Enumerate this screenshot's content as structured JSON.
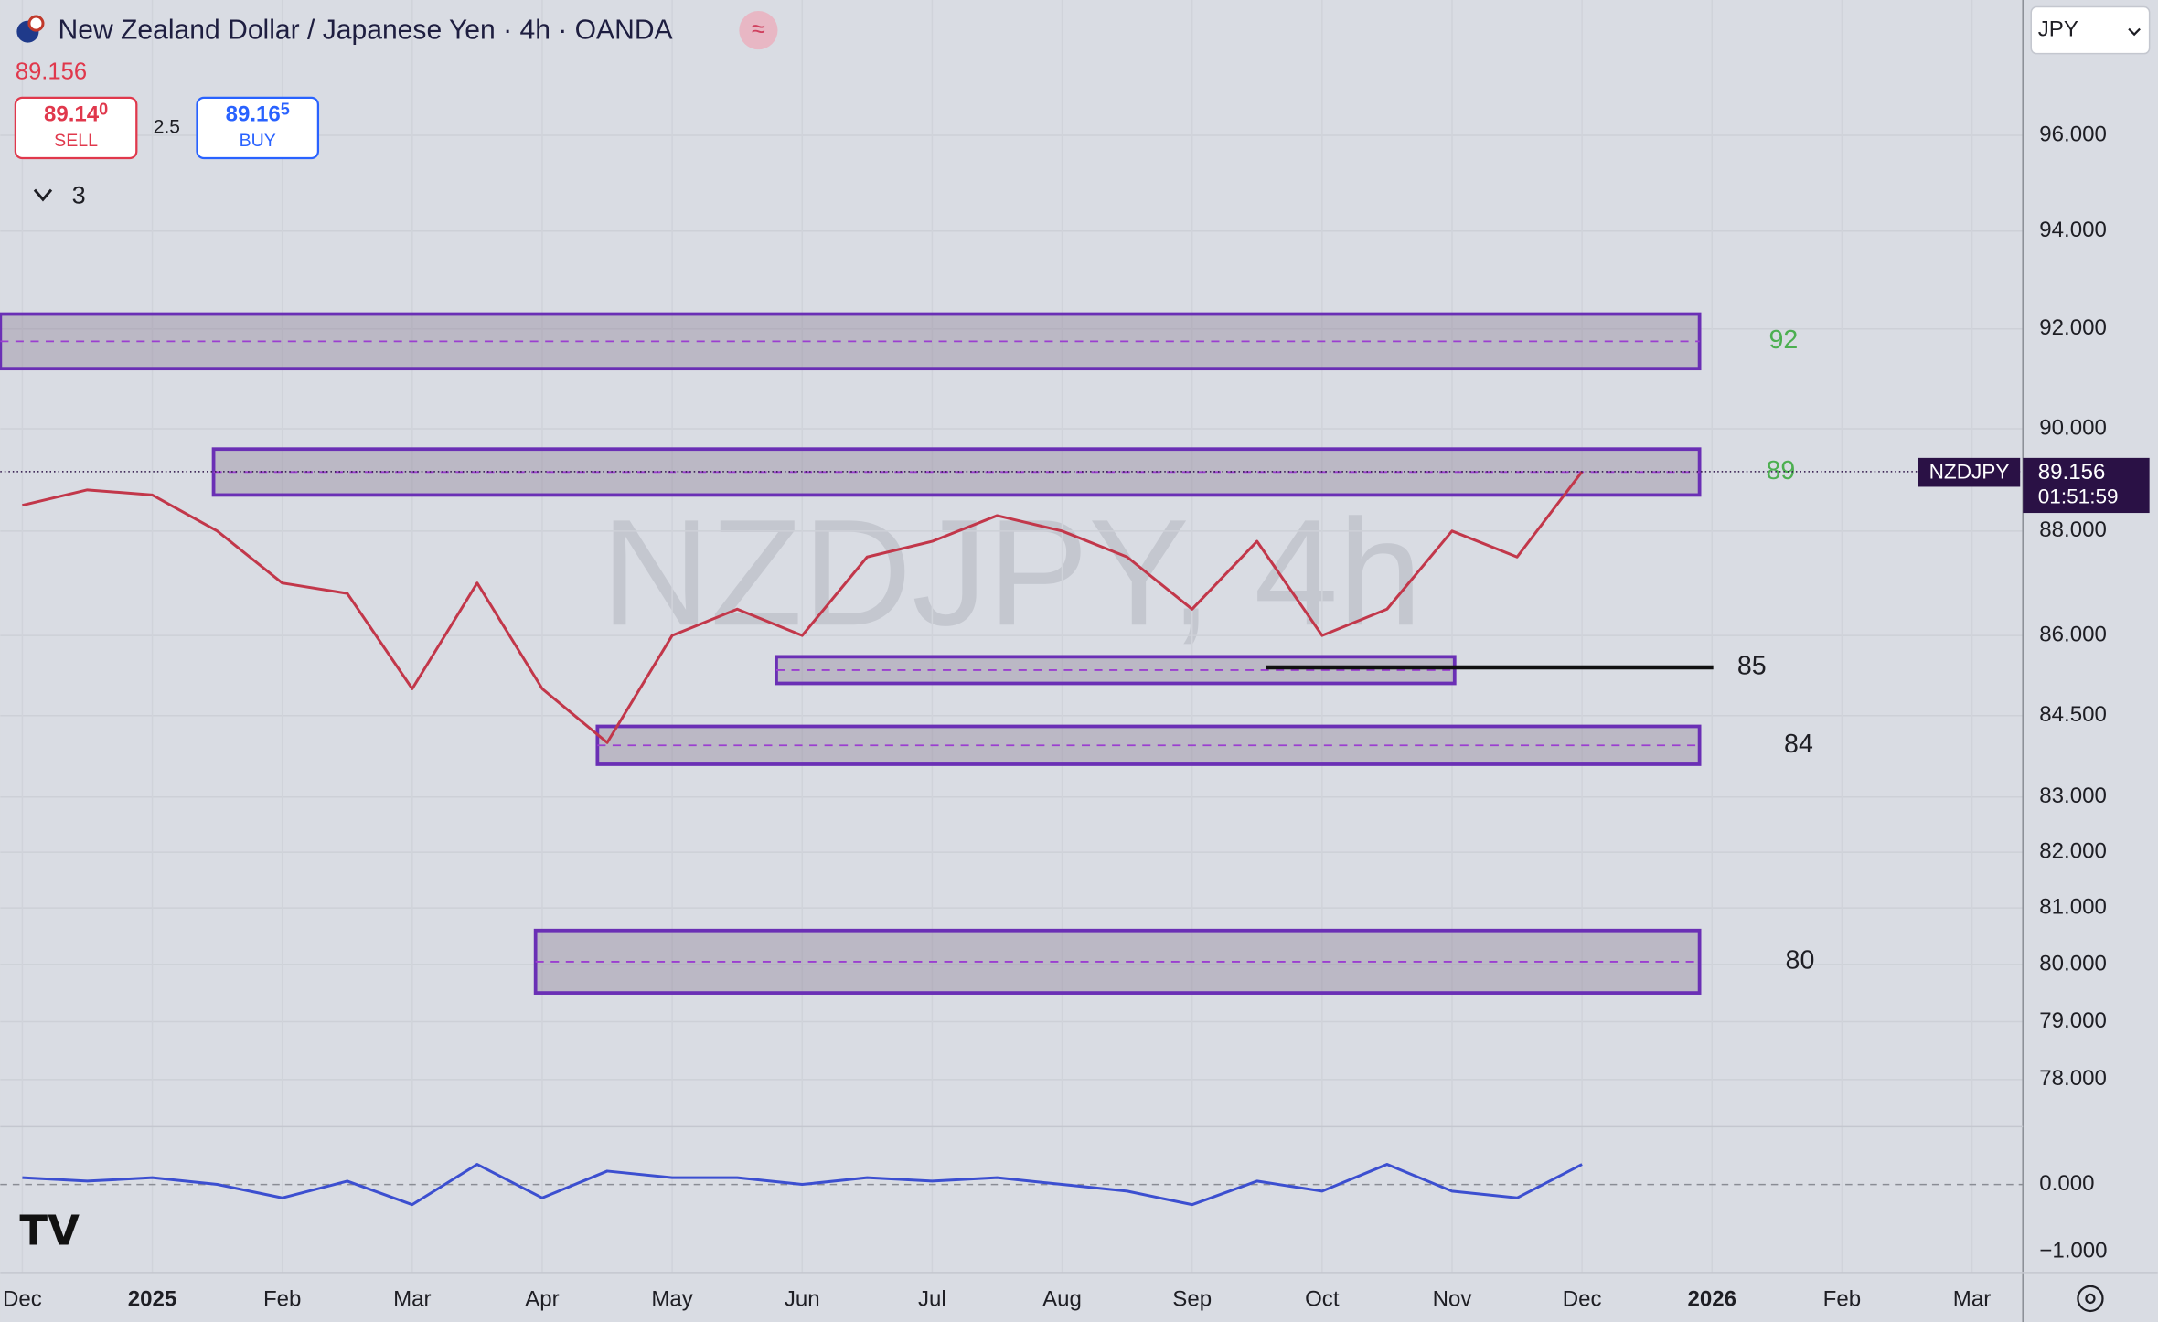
{
  "header": {
    "title": "New Zealand Dollar / Japanese Yen · 4h · OANDA",
    "sell": {
      "price": "89.14",
      "pip": "0",
      "label": "SELL"
    },
    "spread": "2.5",
    "buy": {
      "price": "89.16",
      "pip": "5",
      "label": "BUY"
    },
    "indicators_count": "3",
    "currency": "JPY",
    "watermark": "NZDJPY, 4h",
    "symbol": "NZDJPY",
    "countdown": "01:51:59"
  },
  "chart_data": [
    {
      "type": "line",
      "log_scale": true,
      "grid": true,
      "color": "#c2374a",
      "categories": [
        "Dec",
        null,
        "2025",
        null,
        "Feb",
        null,
        "Mar",
        null,
        "Apr",
        null,
        "May",
        null,
        "Jun",
        null,
        "Jul",
        null,
        "Aug",
        null,
        "Sep",
        null,
        "Oct",
        null,
        "Nov",
        null,
        "Dec",
        null,
        "2026",
        null,
        "Feb",
        null,
        "Mar"
      ],
      "values": [
        88.5,
        88.8,
        88.7,
        88.0,
        87.0,
        86.8,
        85.0,
        87.0,
        85.0,
        84.0,
        86.0,
        86.5,
        86.0,
        87.5,
        87.8,
        88.3,
        88.0,
        87.5,
        86.5,
        87.8,
        86.0,
        86.5,
        88.0,
        87.5,
        89.156,
        null,
        null,
        null,
        null,
        null,
        null
      ],
      "last_price": 89.156,
      "ylim": [
        77.22,
        98.9
      ],
      "yticks": [
        {
          "value": 96,
          "label": "96.000"
        },
        {
          "value": 94,
          "label": "94.000"
        },
        {
          "value": 92,
          "label": "92.000"
        },
        {
          "value": 90,
          "label": "90.000"
        },
        {
          "value": 88,
          "label": "88.000"
        },
        {
          "value": 86,
          "label": "86.000"
        },
        {
          "value": 84.5,
          "label": "84.500"
        },
        {
          "value": 83,
          "label": "83.000"
        },
        {
          "value": 82,
          "label": "82.000"
        },
        {
          "value": 81,
          "label": "81.000"
        },
        {
          "value": 80,
          "label": "80.000"
        },
        {
          "value": 79,
          "label": "79.000"
        },
        {
          "value": 78,
          "label": "78.000"
        }
      ],
      "zones": [
        {
          "label": "92",
          "top": 92.3,
          "bottom": 91.2,
          "label_color": "#4caf50"
        },
        {
          "label": "89",
          "top": 89.6,
          "bottom": 88.7,
          "label_color": "#4caf50"
        },
        {
          "top": 85.6,
          "bottom": 85.1
        },
        {
          "label": "84",
          "top": 84.3,
          "bottom": 83.6,
          "label_color": "#1e1e24"
        },
        {
          "label": "80",
          "top": 80.6,
          "bottom": 79.5,
          "label_color": "#1e1e24"
        }
      ],
      "levels": [
        {
          "label": "85",
          "value": 85.4,
          "color": "#111111"
        }
      ]
    },
    {
      "type": "line",
      "color": "#3c4fd0",
      "values": [
        0.1,
        0.05,
        0.1,
        0.0,
        -0.2,
        0.05,
        -0.3,
        0.3,
        -0.2,
        0.2,
        0.1,
        0.1,
        0.0,
        0.1,
        0.05,
        0.1,
        0.0,
        -0.1,
        -0.3,
        0.05,
        -0.1,
        0.3,
        -0.1,
        -0.2,
        0.3,
        null,
        null,
        null,
        null,
        null,
        null
      ],
      "ylim": [
        -1.31,
        0.84
      ],
      "yticks": [
        {
          "value": 0,
          "label": "0.000"
        },
        {
          "value": -1,
          "label": "−1.000"
        }
      ]
    }
  ]
}
